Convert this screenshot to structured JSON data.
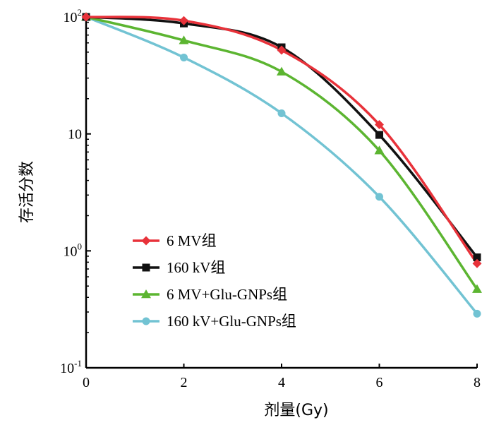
{
  "chart_data": {
    "type": "line",
    "title": "",
    "xlabel": "剂量(Gy)",
    "ylabel": "存活分数",
    "xlim": [
      0,
      8
    ],
    "ylim": [
      0.1,
      100
    ],
    "yscale": "log",
    "grid": false,
    "legend_position": "bottom-left",
    "x_ticks": [
      0,
      2,
      4,
      6,
      8
    ],
    "x_tick_labels": [
      "0",
      "2",
      "4",
      "6",
      "8"
    ],
    "y_ticks": [
      {
        "value": 100,
        "base": "10",
        "exp": "2"
      },
      {
        "value": 10,
        "base": "10",
        "exp": ""
      },
      {
        "value": 1,
        "base": "10",
        "exp": "0"
      },
      {
        "value": 0.1,
        "base": "10",
        "exp": "-1"
      }
    ],
    "x": [
      0,
      2,
      4,
      6,
      8
    ],
    "series": [
      {
        "name": "6 MV组",
        "color": "#e8323a",
        "marker": "diamond",
        "values": [
          100,
          93,
          52,
          12,
          0.78
        ]
      },
      {
        "name": "160 kV组",
        "color": "#111111",
        "marker": "square",
        "values": [
          100,
          88,
          55,
          9.8,
          0.88
        ]
      },
      {
        "name": "6 MV+Glu-GNPs组",
        "color": "#5cb531",
        "marker": "triangle",
        "values": [
          100,
          63,
          34,
          7.2,
          0.47
        ]
      },
      {
        "name": "160 kV+Glu-GNPs组",
        "color": "#72c3d3",
        "marker": "circle",
        "values": [
          100,
          45,
          15,
          2.9,
          0.29
        ]
      }
    ]
  }
}
